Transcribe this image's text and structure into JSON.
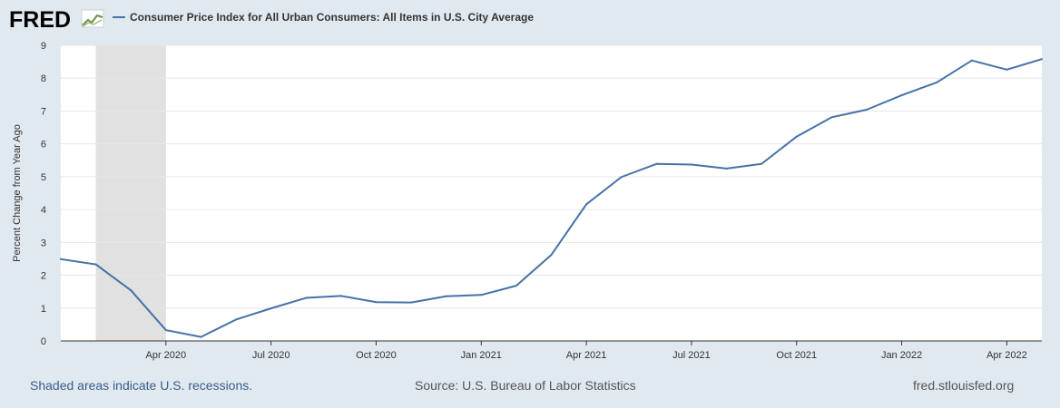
{
  "header": {
    "logo_text": "FRED",
    "legend_label": "Consumer Price Index for All Urban Consumers: All Items in U.S. City Average"
  },
  "footer": {
    "recession_note": "Shaded areas indicate U.S. recessions.",
    "source": "Source: U.S. Bureau of Labor Statistics",
    "site": "fred.stlouisfed.org"
  },
  "colors": {
    "page_background": "#e1e9f0",
    "plot_background": "#ffffff",
    "series_line": "#4572a7",
    "recession_shade": "#e1e1e1",
    "footer_link": "#3a5d89",
    "footer_text": "#555555"
  },
  "chart_data": {
    "type": "line",
    "title": "",
    "xlabel": "",
    "ylabel": "Percent Change from Year Ago",
    "ylim": [
      0,
      9
    ],
    "y_ticks": [
      0,
      1,
      2,
      3,
      4,
      5,
      6,
      7,
      8,
      9
    ],
    "x_ticks": [
      {
        "date": "2020-04",
        "label": "Apr 2020"
      },
      {
        "date": "2020-07",
        "label": "Jul 2020"
      },
      {
        "date": "2020-10",
        "label": "Oct 2020"
      },
      {
        "date": "2021-01",
        "label": "Jan 2021"
      },
      {
        "date": "2021-04",
        "label": "Apr 2021"
      },
      {
        "date": "2021-07",
        "label": "Jul 2021"
      },
      {
        "date": "2021-10",
        "label": "Oct 2021"
      },
      {
        "date": "2022-01",
        "label": "Jan 2022"
      },
      {
        "date": "2022-04",
        "label": "Apr 2022"
      }
    ],
    "x_range": [
      "2020-01",
      "2022-05"
    ],
    "grid": "horizontal",
    "legend": "top-left",
    "recessions": [
      {
        "start": "2020-02",
        "end": "2020-04"
      }
    ],
    "series": [
      {
        "name": "Consumer Price Index for All Urban Consumers: All Items in U.S. City Average",
        "x": [
          "2020-01",
          "2020-02",
          "2020-03",
          "2020-04",
          "2020-05",
          "2020-06",
          "2020-07",
          "2020-08",
          "2020-09",
          "2020-10",
          "2020-11",
          "2020-12",
          "2021-01",
          "2021-02",
          "2021-03",
          "2021-04",
          "2021-05",
          "2021-06",
          "2021-07",
          "2021-08",
          "2021-09",
          "2021-10",
          "2021-11",
          "2021-12",
          "2022-01",
          "2022-02",
          "2022-03",
          "2022-04",
          "2022-05"
        ],
        "values": [
          2.49,
          2.33,
          1.54,
          0.33,
          0.12,
          0.65,
          0.99,
          1.31,
          1.37,
          1.18,
          1.17,
          1.36,
          1.4,
          1.68,
          2.62,
          4.16,
          4.99,
          5.39,
          5.37,
          5.25,
          5.39,
          6.22,
          6.81,
          7.04,
          7.48,
          7.87,
          8.54,
          8.26,
          8.58
        ]
      }
    ]
  }
}
